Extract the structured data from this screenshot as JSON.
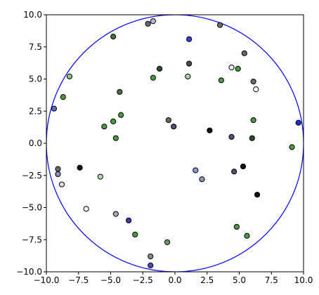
{
  "chart_data": {
    "type": "scatter",
    "title": "",
    "xlabel": "",
    "ylabel": "",
    "xlim": [
      -10,
      10
    ],
    "ylim": [
      -10,
      10
    ],
    "grid": false,
    "legend": "none",
    "xticks": [
      "−10.0",
      "−7.5",
      "−5.0",
      "−2.5",
      "0.0",
      "2.5",
      "5.0",
      "7.5",
      "10.0"
    ],
    "yticks": [
      "10.0",
      "7.5",
      "5.0",
      "2.5",
      "0.0",
      "−2.5",
      "−5.0",
      "−7.5",
      "−10.0"
    ],
    "xtick_values": [
      -10,
      -7.5,
      -5,
      -2.5,
      0,
      2.5,
      5,
      7.5,
      10
    ],
    "ytick_values": [
      10,
      7.5,
      5,
      2.5,
      0,
      -2.5,
      -5,
      -7.5,
      -10
    ],
    "circle": {
      "cx": 0,
      "cy": 0,
      "r": 10,
      "color": "#0000ff"
    },
    "points": [
      {
        "x": -4.8,
        "y": 8.3,
        "color": "#3c7a34"
      },
      {
        "x": -2.1,
        "y": 9.3,
        "color": "#6b6b6b"
      },
      {
        "x": -1.7,
        "y": 9.5,
        "color": "#b0b8e0"
      },
      {
        "x": 1.1,
        "y": 8.1,
        "color": "#3a3fd6"
      },
      {
        "x": 3.5,
        "y": 9.2,
        "color": "#6b6b6b"
      },
      {
        "x": 5.4,
        "y": 7.0,
        "color": "#6b6b6b"
      },
      {
        "x": -8.2,
        "y": 5.2,
        "color": "#8cc884"
      },
      {
        "x": -1.2,
        "y": 5.8,
        "color": "#2c4d2a"
      },
      {
        "x": 1.1,
        "y": 6.2,
        "color": "#4a4a4a"
      },
      {
        "x": 4.4,
        "y": 5.9,
        "color": "#e8e8f0"
      },
      {
        "x": 4.9,
        "y": 5.8,
        "color": "#4a9a3e"
      },
      {
        "x": -1.7,
        "y": 5.1,
        "color": "#4a9a3e"
      },
      {
        "x": 1.0,
        "y": 5.2,
        "color": "#a8dca0"
      },
      {
        "x": 3.6,
        "y": 4.9,
        "color": "#4a9a3e"
      },
      {
        "x": 6.1,
        "y": 4.8,
        "color": "#6b6b6b"
      },
      {
        "x": 6.3,
        "y": 4.2,
        "color": "#ffffff"
      },
      {
        "x": -8.7,
        "y": 3.6,
        "color": "#4a9a3e"
      },
      {
        "x": -4.3,
        "y": 4.0,
        "color": "#3c7a34"
      },
      {
        "x": -9.4,
        "y": 2.7,
        "color": "#6466c8"
      },
      {
        "x": -4.2,
        "y": 2.2,
        "color": "#4a9a3e"
      },
      {
        "x": -4.8,
        "y": 1.7,
        "color": "#4a9a3e"
      },
      {
        "x": -5.5,
        "y": 1.3,
        "color": "#4a9a3e"
      },
      {
        "x": -0.5,
        "y": 1.8,
        "color": "#6b6b6b"
      },
      {
        "x": -0.1,
        "y": 1.3,
        "color": "#50507a"
      },
      {
        "x": 6.1,
        "y": 1.8,
        "color": "#4a9a3e"
      },
      {
        "x": 9.6,
        "y": 1.6,
        "color": "#1e2ad8"
      },
      {
        "x": 2.7,
        "y": 1.0,
        "color": "#111111"
      },
      {
        "x": -4.6,
        "y": 0.4,
        "color": "#4a9a3e"
      },
      {
        "x": 4.4,
        "y": 0.5,
        "color": "#50507a"
      },
      {
        "x": 6.0,
        "y": 0.4,
        "color": "#2c4d2a"
      },
      {
        "x": 9.1,
        "y": -0.3,
        "color": "#4a9a3e"
      },
      {
        "x": -7.4,
        "y": -1.9,
        "color": "#111111"
      },
      {
        "x": -9.1,
        "y": -2.0,
        "color": "#6b6b6b"
      },
      {
        "x": -9.1,
        "y": -2.4,
        "color": "#8a8fb8"
      },
      {
        "x": -5.8,
        "y": -2.6,
        "color": "#b8d8b0"
      },
      {
        "x": 1.6,
        "y": -2.1,
        "color": "#8a9ad8"
      },
      {
        "x": 2.1,
        "y": -2.8,
        "color": "#8a9ab8"
      },
      {
        "x": 4.6,
        "y": -2.2,
        "color": "#50507a"
      },
      {
        "x": 5.3,
        "y": -1.8,
        "color": "#111111"
      },
      {
        "x": -8.8,
        "y": -3.2,
        "color": "#d8d8f0"
      },
      {
        "x": 6.4,
        "y": -4.0,
        "color": "#111111"
      },
      {
        "x": -6.9,
        "y": -5.1,
        "color": "#f0f0f8"
      },
      {
        "x": -4.6,
        "y": -5.5,
        "color": "#a8a8b8"
      },
      {
        "x": -3.6,
        "y": -6.0,
        "color": "#3a3ab0"
      },
      {
        "x": -3.1,
        "y": -7.1,
        "color": "#4a9a3e"
      },
      {
        "x": 4.8,
        "y": -6.5,
        "color": "#4a9a3e"
      },
      {
        "x": 5.6,
        "y": -7.2,
        "color": "#4a9a3e"
      },
      {
        "x": -0.6,
        "y": -7.7,
        "color": "#6a9a6a"
      },
      {
        "x": -1.9,
        "y": -8.8,
        "color": "#8a8a8a"
      },
      {
        "x": -1.9,
        "y": -9.5,
        "color": "#4a4ab8"
      }
    ]
  }
}
